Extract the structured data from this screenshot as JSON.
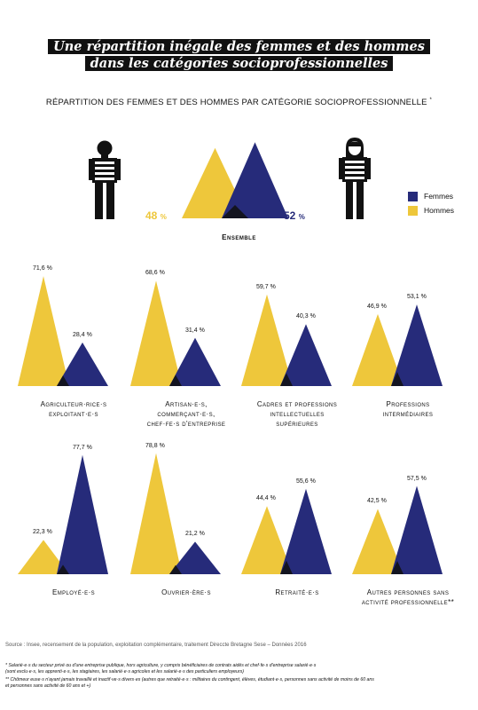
{
  "title": {
    "line1": "Une répartition inégale des femmes et des hommes",
    "line2": "dans les catégories socioprofessionnelles"
  },
  "subtitle": "RÉPARTITION DES FEMMES ET DES HOMMES PAR CATÉGORIE SOCIOPROFESSIONNELLE",
  "subtitle_mark": "*",
  "colors": {
    "femmes": "#262b7a",
    "hommes": "#eec73b"
  },
  "legend": {
    "femmes": "Femmes",
    "hommes": "Hommes"
  },
  "chart_data": {
    "type": "area",
    "ensemble": {
      "label": "Ensemble",
      "hommes": 48,
      "femmes": 52,
      "hommes_label": "48",
      "femmes_label": "52",
      "unit": "%"
    },
    "categories": [
      {
        "label": "Agriculteur·rice·s\nexploitant·e·s",
        "hommes": 71.6,
        "femmes": 28.4,
        "hommes_label": "71,6 %",
        "femmes_label": "28,4 %"
      },
      {
        "label": "Artisan·e·s,\ncommerçant·e·s,\nchef·fe·s d'entreprise",
        "hommes": 68.6,
        "femmes": 31.4,
        "hommes_label": "68,6 %",
        "femmes_label": "31,4 %"
      },
      {
        "label": "Cadres et professions\nintellectuelles\nsupérieures",
        "hommes": 59.7,
        "femmes": 40.3,
        "hommes_label": "59,7 %",
        "femmes_label": "40,3 %"
      },
      {
        "label": "Professions\nintermédiaires",
        "hommes": 46.9,
        "femmes": 53.1,
        "hommes_label": "46,9 %",
        "femmes_label": "53,1 %"
      },
      {
        "label": "Employé·e·s",
        "hommes": 22.3,
        "femmes": 77.7,
        "hommes_label": "22,3 %",
        "femmes_label": "77,7 %"
      },
      {
        "label": "Ouvrier·ère·s",
        "hommes": 78.8,
        "femmes": 21.2,
        "hommes_label": "78,8 %",
        "femmes_label": "21,2 %"
      },
      {
        "label": "Retraité·e·s",
        "hommes": 44.4,
        "femmes": 55.6,
        "hommes_label": "44,4 %",
        "femmes_label": "55,6 %"
      },
      {
        "label": "Autres personnes sans\nactivité professionnelle**",
        "hommes": 42.5,
        "femmes": 57.5,
        "hommes_label": "42,5 %",
        "femmes_label": "57,5 %"
      }
    ]
  },
  "source": "Source : Insee, recensement de la population, exploitation complémentaire, traitement Direccte Bretagne Sese – Données 2016",
  "notes": {
    "n1a": "* Salarié·e·s du secteur privé ou d'une entreprise publique, hors agriculture, y compris bénéficiaires de contrats aidés et chef·fe·s d'entreprise salarié·e·s",
    "n1b": "(sont exclu·e·s, les apprenti·e·s, les stagiaires, les salarié·e·s agricoles et les salarié·e·s des particuliers employeurs)",
    "n2a": "** Chômeur euse·s n'ayant jamais travaillé et inactif·ve·s divers·es (autres que retraité·e·s : militaires du contingent, élèves, étudiant·e·s, personnes sans activité de moins de 60 ans",
    "n2b": "et personnes sans activité de 60 ans et +)"
  },
  "icons": {
    "man": "man-icon",
    "woman": "woman-icon"
  }
}
